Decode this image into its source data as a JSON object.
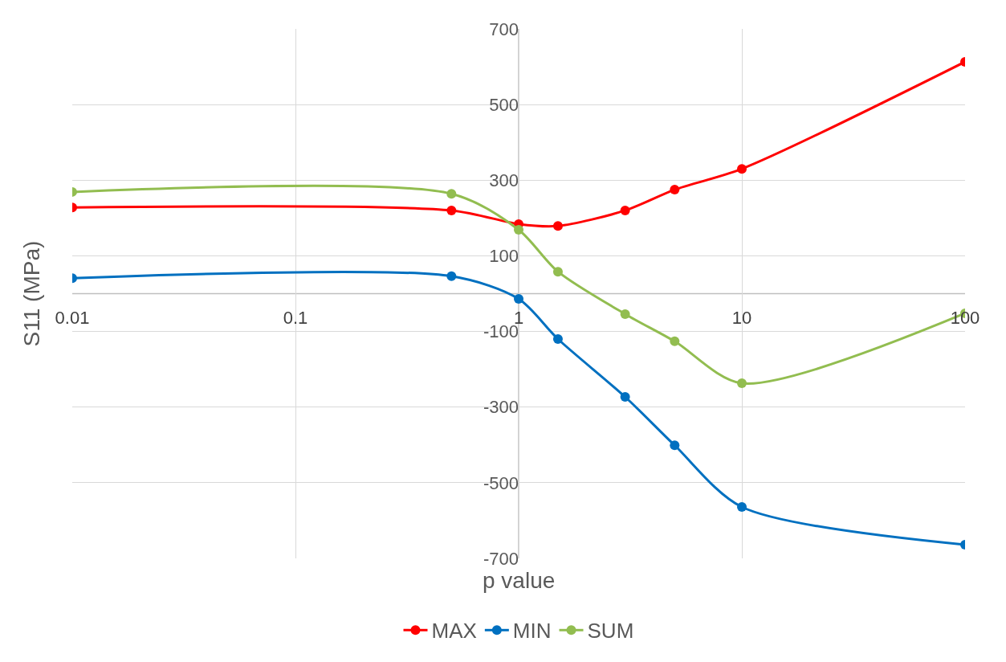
{
  "chart_data": {
    "type": "line",
    "xlabel": "p value",
    "ylabel": "S11 (MPa)",
    "log": "x",
    "x": [
      0.01,
      0.5,
      1,
      1.5,
      3,
      5,
      10,
      100
    ],
    "xlim": [
      0.01,
      100
    ],
    "xticks": [
      0.01,
      0.1,
      1,
      10,
      100
    ],
    "ylim": [
      -700,
      700
    ],
    "yticks": [
      -700,
      -500,
      -300,
      -100,
      100,
      300,
      500,
      700
    ],
    "grid": true,
    "legend": "bottom",
    "marker": "circle",
    "line_style": "solid",
    "series": [
      {
        "name": "MAX",
        "color": "#ff0000",
        "values": [
          228,
          220,
          184,
          179,
          220,
          275,
          330,
          613
        ]
      },
      {
        "name": "MIN",
        "color": "#0070c0",
        "values": [
          41,
          46,
          -14,
          -120,
          -273,
          -401,
          -564,
          -664
        ]
      },
      {
        "name": "SUM",
        "color": "#92bd50",
        "values": [
          269,
          264,
          169,
          58,
          -54,
          -126,
          -237,
          -52
        ]
      }
    ]
  }
}
